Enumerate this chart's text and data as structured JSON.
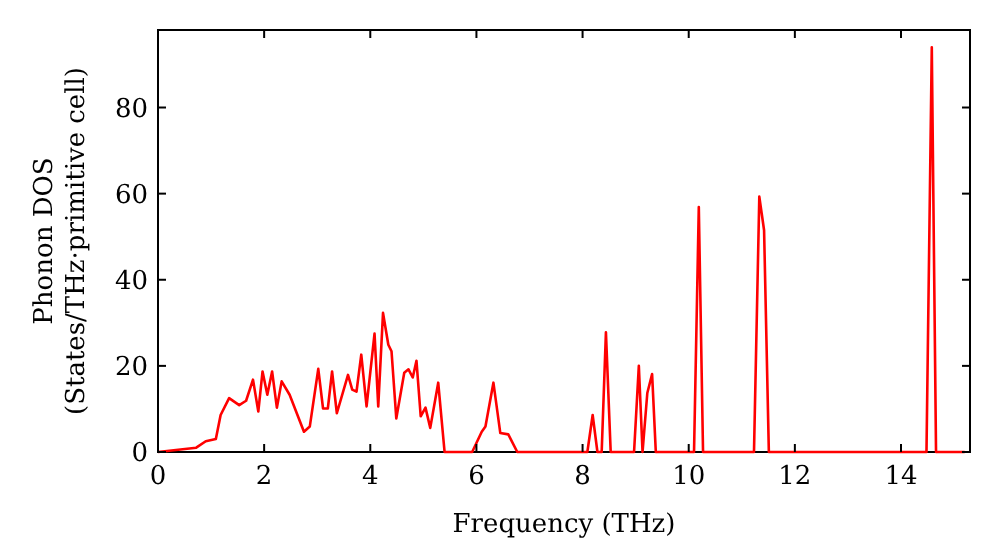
{
  "chart_data": {
    "type": "line",
    "xlabel": "Frequency (THz)",
    "ylabel": "Phonon DOS\n(States/THz·primitive cell)",
    "xlim": [
      0,
      15.3
    ],
    "ylim": [
      0,
      98
    ],
    "xticks": [
      0,
      2,
      4,
      6,
      8,
      10,
      12,
      14
    ],
    "yticks": [
      0,
      20,
      40,
      60,
      80
    ],
    "grid": false,
    "marker": "none",
    "line_style": "solid",
    "series": [
      {
        "color": "#ff0000",
        "x": [
          0,
          0.72,
          0.9,
          1.09,
          1.18,
          1.34,
          1.53,
          1.66,
          1.79,
          1.89,
          1.97,
          2.06,
          2.15,
          2.24,
          2.33,
          2.48,
          2.75,
          2.86,
          3.02,
          3.11,
          3.2,
          3.28,
          3.37,
          3.58,
          3.66,
          3.74,
          3.83,
          3.93,
          4.08,
          4.15,
          4.24,
          4.34,
          4.4,
          4.49,
          4.64,
          4.72,
          4.8,
          4.87,
          4.95,
          5.04,
          5.13,
          5.28,
          5.4,
          5.92,
          6.1,
          6.17,
          6.32,
          6.45,
          6.6,
          6.77,
          8.09,
          8.19,
          8.28,
          8.36,
          8.44,
          8.53,
          8.97,
          9.06,
          9.13,
          9.22,
          9.31,
          9.38,
          10.1,
          10.19,
          10.27,
          11.23,
          11.33,
          11.42,
          11.51,
          14.48,
          14.58,
          14.66,
          15.2
        ],
        "values": [
          0,
          1,
          2.5,
          3,
          8.6,
          12.5,
          10.9,
          11.9,
          16.8,
          9.4,
          18.7,
          13.3,
          18.7,
          10.3,
          16.4,
          13.3,
          4.7,
          5.9,
          19.3,
          10.1,
          10.1,
          18.7,
          9,
          17.9,
          14.5,
          14,
          22.6,
          10.6,
          27.5,
          10.6,
          32.3,
          24.9,
          23.4,
          7.8,
          18.4,
          19.2,
          17.3,
          21.2,
          8.3,
          10.3,
          5.6,
          16.1,
          0,
          0,
          4.7,
          5.9,
          16.1,
          4.4,
          4.1,
          0,
          0,
          8.6,
          0,
          0,
          27.8,
          0,
          0,
          20,
          0,
          13.7,
          18.1,
          0,
          0,
          56.9,
          0,
          0,
          59.3,
          51.5,
          0,
          0,
          94,
          0,
          0
        ]
      }
    ]
  }
}
